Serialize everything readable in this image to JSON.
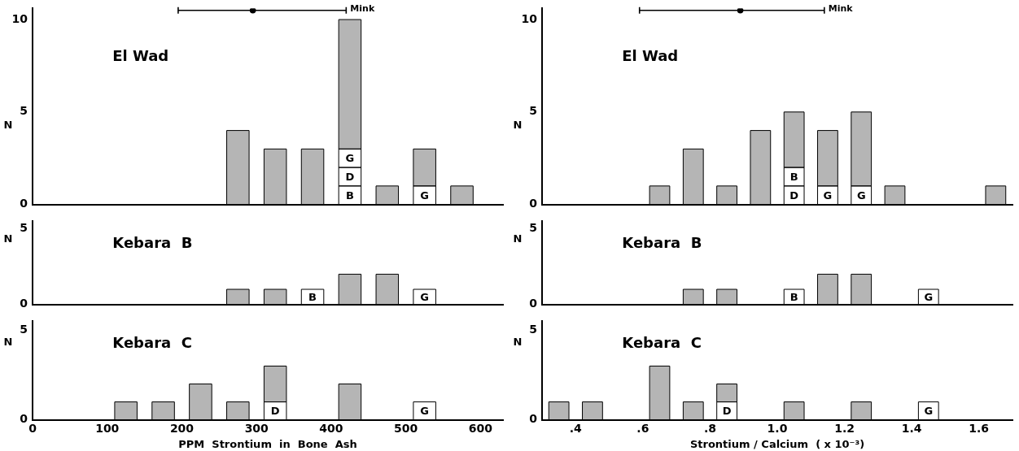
{
  "chart_data": [
    {
      "type": "bar",
      "title": "El Wad",
      "ylabel": "N",
      "stacked": true,
      "x": [
        275,
        325,
        375,
        425,
        475,
        525,
        575
      ],
      "xlim": [
        0,
        630
      ],
      "ylim": [
        0,
        10.6
      ],
      "yticks": [
        0,
        5,
        10
      ],
      "tick_labels": "y",
      "series": [
        {
          "color": "#ffffff",
          "values": [
            null,
            null,
            null,
            1,
            null,
            1,
            null
          ],
          "value_labels": [
            null,
            null,
            null,
            "B",
            null,
            "G",
            null
          ]
        },
        {
          "color": "#ffffff",
          "values": [
            null,
            null,
            null,
            1,
            null,
            null,
            null
          ],
          "value_labels": [
            null,
            null,
            null,
            "D",
            null,
            null,
            null
          ]
        },
        {
          "color": "#ffffff",
          "values": [
            null,
            null,
            null,
            1,
            null,
            null,
            null
          ],
          "value_labels": [
            null,
            null,
            null,
            "G",
            null,
            null,
            null
          ]
        },
        {
          "color": "#b5b5b5",
          "values": [
            4,
            3,
            3,
            7,
            1,
            2,
            1
          ]
        },
        {
          "type": "scatter",
          "name": "Mink",
          "color": "#000000",
          "marker": "circle",
          "x": [
            295
          ],
          "values": [
            10.5
          ],
          "xerrors": [
            [
              195,
              420
            ]
          ]
        }
      ]
    },
    {
      "type": "bar",
      "title": "El Wad",
      "ylabel": "N",
      "stacked": true,
      "x": [
        0.65,
        0.75,
        0.85,
        0.95,
        1.05,
        1.15,
        1.25,
        1.35,
        1.65
      ],
      "xlim": [
        0.3,
        1.7
      ],
      "ylim": [
        0,
        10.6
      ],
      "yticks": [
        0,
        5,
        10
      ],
      "tick_labels": "y",
      "series": [
        {
          "color": "#ffffff",
          "values": [
            null,
            null,
            null,
            null,
            1,
            1,
            1,
            null,
            null
          ],
          "value_labels": [
            null,
            null,
            null,
            null,
            "D",
            "G",
            "G",
            null,
            null
          ]
        },
        {
          "color": "#ffffff",
          "values": [
            null,
            null,
            null,
            null,
            1,
            null,
            null,
            null,
            null
          ],
          "value_labels": [
            null,
            null,
            null,
            null,
            "B",
            null,
            null,
            null,
            null
          ]
        },
        {
          "color": "#b5b5b5",
          "values": [
            1,
            3,
            1,
            4,
            3,
            3,
            4,
            1,
            1
          ]
        },
        {
          "type": "scatter",
          "name": "Mink",
          "color": "#000000",
          "marker": "circle",
          "x": [
            0.89
          ],
          "values": [
            10.5
          ],
          "xerrors": [
            [
              0.59,
              1.14
            ]
          ]
        }
      ]
    },
    {
      "type": "bar",
      "title": "Kebara  B",
      "ylabel": "N",
      "stacked": true,
      "x": [
        275,
        325,
        375,
        425,
        475,
        525
      ],
      "xlim": [
        0,
        630
      ],
      "ylim": [
        0,
        5.5
      ],
      "yticks": [
        0,
        5
      ],
      "tick_labels": "y",
      "series": [
        {
          "color": "#ffffff",
          "values": [
            null,
            null,
            1,
            null,
            null,
            1
          ],
          "value_labels": [
            null,
            null,
            "B",
            null,
            null,
            "G"
          ]
        },
        {
          "color": "#b5b5b5",
          "values": [
            1,
            1,
            null,
            2,
            2,
            null
          ]
        }
      ]
    },
    {
      "type": "bar",
      "title": "Kebara  B",
      "ylabel": "N",
      "stacked": true,
      "x": [
        0.75,
        0.85,
        1.05,
        1.15,
        1.25,
        1.45
      ],
      "xlim": [
        0.3,
        1.7
      ],
      "ylim": [
        0,
        5.5
      ],
      "yticks": [
        0,
        5
      ],
      "tick_labels": "y",
      "series": [
        {
          "color": "#ffffff",
          "values": [
            null,
            null,
            1,
            null,
            null,
            1
          ],
          "value_labels": [
            null,
            null,
            "B",
            null,
            null,
            "G"
          ]
        },
        {
          "color": "#b5b5b5",
          "values": [
            1,
            1,
            null,
            2,
            2,
            null
          ]
        }
      ]
    },
    {
      "type": "bar",
      "title": "Kebara  C",
      "ylabel": "N",
      "xlabel": "PPM  Strontium  in  Bone  Ash",
      "stacked": true,
      "x": [
        125,
        175,
        225,
        275,
        325,
        425,
        525
      ],
      "xlim": [
        0,
        630
      ],
      "xticks": [
        0,
        100,
        200,
        300,
        400,
        500,
        600
      ],
      "ylim": [
        0,
        5.5
      ],
      "yticks": [
        0,
        5
      ],
      "series": [
        {
          "color": "#ffffff",
          "values": [
            null,
            null,
            null,
            null,
            1,
            null,
            1
          ],
          "value_labels": [
            null,
            null,
            null,
            null,
            "D",
            null,
            "G"
          ]
        },
        {
          "color": "#b5b5b5",
          "values": [
            1,
            1,
            2,
            1,
            2,
            2,
            null
          ]
        }
      ]
    },
    {
      "type": "bar",
      "title": "Kebara  C",
      "ylabel": "N",
      "xlabel": "Strontium / Calcium  ( x 10⁻³)",
      "stacked": true,
      "x": [
        0.35,
        0.45,
        0.65,
        0.75,
        0.85,
        1.05,
        1.25,
        1.45
      ],
      "xlim": [
        0.3,
        1.7
      ],
      "xticks": [
        {
          "value": 0.4,
          "label": ".4"
        },
        {
          "value": 0.6,
          "label": ".6"
        },
        {
          "value": 0.8,
          "label": ".8"
        },
        {
          "value": 1.0,
          "label": "1.0"
        },
        {
          "value": 1.2,
          "label": "1.2"
        },
        {
          "value": 1.4,
          "label": "1.4"
        },
        {
          "value": 1.6,
          "label": "1.6"
        }
      ],
      "ylim": [
        0,
        5.5
      ],
      "yticks": [
        0,
        5
      ],
      "series": [
        {
          "color": "#ffffff",
          "values": [
            null,
            null,
            null,
            null,
            1,
            null,
            null,
            1
          ],
          "value_labels": [
            null,
            null,
            null,
            null,
            "D",
            null,
            null,
            "G"
          ]
        },
        {
          "color": "#b5b5b5",
          "values": [
            1,
            1,
            3,
            1,
            1,
            1,
            1,
            null
          ]
        }
      ]
    }
  ]
}
